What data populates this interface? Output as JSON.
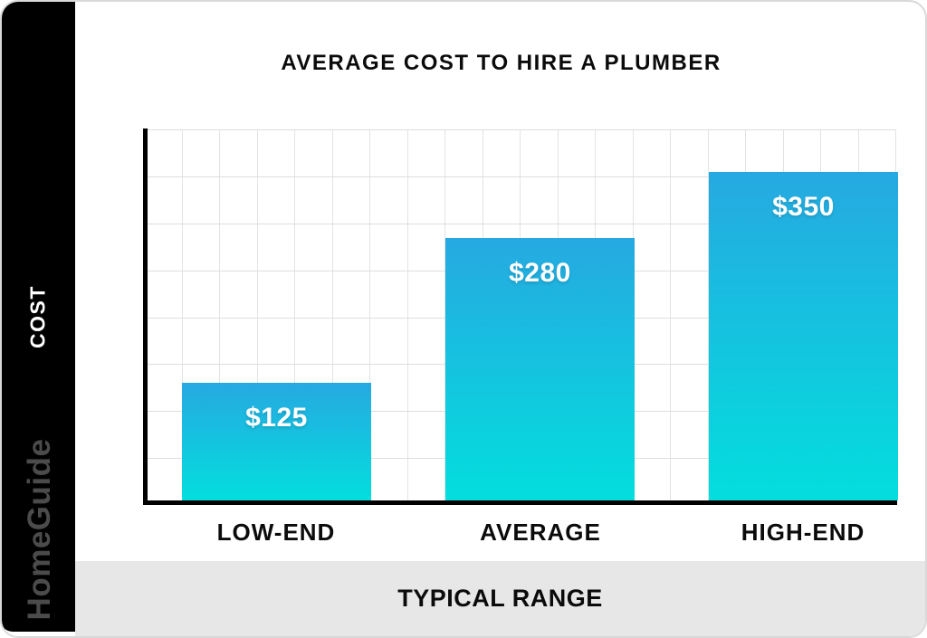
{
  "card": {
    "title": "AVERAGE COST TO HIRE A PLUMBER"
  },
  "sidebar": {
    "ylabel": "COST",
    "watermark": "HomeGuide"
  },
  "footer": {
    "xlabel": "TYPICAL RANGE"
  },
  "chart_data": {
    "type": "bar",
    "title": "AVERAGE COST TO HIRE A PLUMBER",
    "categories": [
      "LOW-END",
      "AVERAGE",
      "HIGH-END"
    ],
    "values": [
      125,
      280,
      350
    ],
    "value_labels": [
      "$125",
      "$280",
      "$350"
    ],
    "xlabel": "TYPICAL RANGE",
    "ylabel": "COST",
    "ylim": [
      0,
      400
    ],
    "grid": true,
    "grid_cols": 20,
    "grid_rows": 8,
    "legend": "none",
    "colors": {
      "bar_gradient_top": "#26a9e1",
      "bar_gradient_bottom": "#03dedd",
      "grid_line": "#e3e3e3",
      "rail_black": "#000000",
      "footer_gray": "#e7e7e7",
      "accent_text": "#ffffff"
    }
  }
}
